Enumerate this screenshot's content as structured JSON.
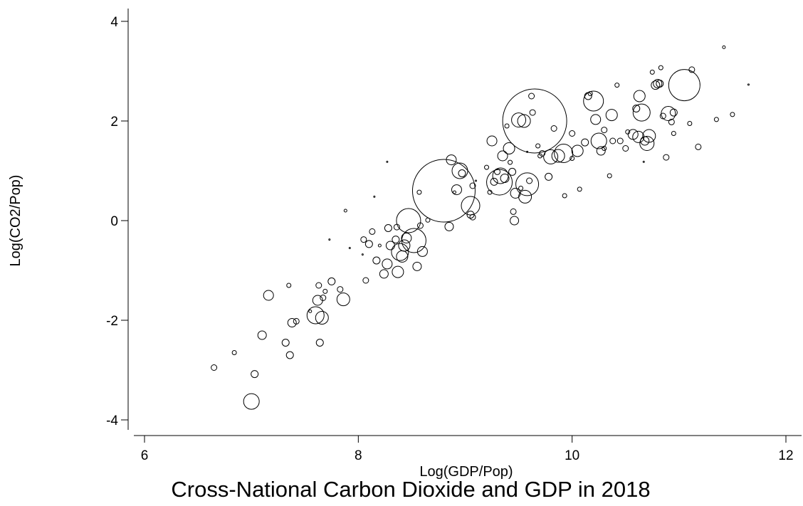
{
  "chart_data": {
    "type": "scatter",
    "title": "Cross-National Carbon Dioxide and GDP in 2018",
    "xlabel": "Log(GDP/Pop)",
    "ylabel": "Log(CO2/Pop)",
    "xlim": [
      6,
      12
    ],
    "ylim": [
      -4,
      4
    ],
    "xticks": [
      "6",
      "8",
      "10",
      "12"
    ],
    "yticks": [
      "4",
      "2",
      "0",
      "-2",
      "-4"
    ],
    "grid": false,
    "legend": "none",
    "points": [
      {
        "x": 6.65,
        "y": -2.95,
        "s": 4
      },
      {
        "x": 6.84,
        "y": -2.65,
        "s": 3
      },
      {
        "x": 7.0,
        "y": -3.63,
        "s": 11
      },
      {
        "x": 7.03,
        "y": -3.08,
        "s": 5
      },
      {
        "x": 7.1,
        "y": -2.3,
        "s": 6
      },
      {
        "x": 7.16,
        "y": -1.5,
        "s": 7
      },
      {
        "x": 7.32,
        "y": -2.45,
        "s": 5
      },
      {
        "x": 7.35,
        "y": -1.3,
        "s": 3
      },
      {
        "x": 7.36,
        "y": -2.7,
        "s": 5
      },
      {
        "x": 7.38,
        "y": -2.05,
        "s": 6
      },
      {
        "x": 7.42,
        "y": -2.02,
        "s": 4
      },
      {
        "x": 7.55,
        "y": -1.82,
        "s": 2
      },
      {
        "x": 7.6,
        "y": -1.9,
        "s": 12
      },
      {
        "x": 7.62,
        "y": -1.6,
        "s": 7
      },
      {
        "x": 7.63,
        "y": -1.3,
        "s": 4
      },
      {
        "x": 7.64,
        "y": -2.45,
        "s": 5
      },
      {
        "x": 7.66,
        "y": -1.95,
        "s": 9
      },
      {
        "x": 7.67,
        "y": -1.55,
        "s": 4
      },
      {
        "x": 7.69,
        "y": -1.42,
        "s": 3
      },
      {
        "x": 7.75,
        "y": -1.22,
        "s": 5
      },
      {
        "x": 7.83,
        "y": -1.38,
        "s": 4
      },
      {
        "x": 7.86,
        "y": -1.58,
        "s": 9
      },
      {
        "x": 7.88,
        "y": 0.2,
        "s": 2
      },
      {
        "x": 7.92,
        "y": -0.55,
        "s": 1
      },
      {
        "x": 8.04,
        "y": -0.68,
        "s": 1
      },
      {
        "x": 8.05,
        "y": -0.38,
        "s": 4
      },
      {
        "x": 8.07,
        "y": -1.2,
        "s": 4
      },
      {
        "x": 8.1,
        "y": -0.47,
        "s": 5
      },
      {
        "x": 8.13,
        "y": -0.22,
        "s": 4
      },
      {
        "x": 8.17,
        "y": -0.8,
        "s": 5
      },
      {
        "x": 8.2,
        "y": -0.5,
        "s": 2
      },
      {
        "x": 8.24,
        "y": -1.07,
        "s": 6
      },
      {
        "x": 8.27,
        "y": -0.87,
        "s": 7
      },
      {
        "x": 8.28,
        "y": -0.15,
        "s": 5
      },
      {
        "x": 8.3,
        "y": -0.5,
        "s": 6
      },
      {
        "x": 8.35,
        "y": -0.38,
        "s": 5
      },
      {
        "x": 8.36,
        "y": -0.13,
        "s": 4
      },
      {
        "x": 8.37,
        "y": -1.03,
        "s": 8
      },
      {
        "x": 8.39,
        "y": -0.63,
        "s": 12
      },
      {
        "x": 8.41,
        "y": -0.72,
        "s": 8
      },
      {
        "x": 8.43,
        "y": -0.5,
        "s": 8
      },
      {
        "x": 8.45,
        "y": -0.35,
        "s": 7
      },
      {
        "x": 8.47,
        "y": 0.0,
        "s": 17
      },
      {
        "x": 8.52,
        "y": -0.4,
        "s": 17
      },
      {
        "x": 8.55,
        "y": -0.92,
        "s": 6
      },
      {
        "x": 8.57,
        "y": 0.57,
        "s": 3
      },
      {
        "x": 8.58,
        "y": -0.1,
        "s": 4
      },
      {
        "x": 8.6,
        "y": -0.62,
        "s": 7
      },
      {
        "x": 8.65,
        "y": 0.01,
        "s": 3
      },
      {
        "x": 8.8,
        "y": 0.6,
        "s": 44
      },
      {
        "x": 8.85,
        "y": -0.12,
        "s": 6
      },
      {
        "x": 8.87,
        "y": 1.22,
        "s": 7
      },
      {
        "x": 8.9,
        "y": 0.57,
        "s": 2
      },
      {
        "x": 8.92,
        "y": 0.62,
        "s": 7
      },
      {
        "x": 8.95,
        "y": 1.0,
        "s": 11
      },
      {
        "x": 8.97,
        "y": 0.95,
        "s": 5
      },
      {
        "x": 9.05,
        "y": 0.3,
        "s": 13
      },
      {
        "x": 9.05,
        "y": 0.12,
        "s": 5
      },
      {
        "x": 9.07,
        "y": 0.07,
        "s": 4
      },
      {
        "x": 9.07,
        "y": 0.7,
        "s": 4
      },
      {
        "x": 9.2,
        "y": 1.07,
        "s": 3
      },
      {
        "x": 9.23,
        "y": 0.57,
        "s": 3
      },
      {
        "x": 9.25,
        "y": 1.6,
        "s": 7
      },
      {
        "x": 9.27,
        "y": 0.78,
        "s": 5
      },
      {
        "x": 9.3,
        "y": 0.98,
        "s": 4
      },
      {
        "x": 9.32,
        "y": 0.77,
        "s": 18
      },
      {
        "x": 9.33,
        "y": 0.9,
        "s": 11
      },
      {
        "x": 9.35,
        "y": 1.3,
        "s": 7
      },
      {
        "x": 9.37,
        "y": 0.85,
        "s": 6
      },
      {
        "x": 9.39,
        "y": 1.9,
        "s": 3
      },
      {
        "x": 9.41,
        "y": 1.45,
        "s": 8
      },
      {
        "x": 9.42,
        "y": 1.17,
        "s": 3
      },
      {
        "x": 9.44,
        "y": 0.98,
        "s": 5
      },
      {
        "x": 9.45,
        "y": 0.18,
        "s": 4
      },
      {
        "x": 9.46,
        "y": 0.0,
        "s": 6
      },
      {
        "x": 9.47,
        "y": 0.55,
        "s": 7
      },
      {
        "x": 9.5,
        "y": 2.02,
        "s": 10
      },
      {
        "x": 9.52,
        "y": 0.65,
        "s": 3
      },
      {
        "x": 9.55,
        "y": 2.0,
        "s": 9
      },
      {
        "x": 9.56,
        "y": 0.48,
        "s": 9
      },
      {
        "x": 9.58,
        "y": 0.73,
        "s": 16
      },
      {
        "x": 9.6,
        "y": 0.8,
        "s": 4
      },
      {
        "x": 9.62,
        "y": 2.5,
        "s": 4
      },
      {
        "x": 9.63,
        "y": 2.17,
        "s": 4
      },
      {
        "x": 9.65,
        "y": 2.0,
        "s": 45
      },
      {
        "x": 9.68,
        "y": 1.5,
        "s": 3
      },
      {
        "x": 9.7,
        "y": 1.3,
        "s": 3
      },
      {
        "x": 9.72,
        "y": 1.35,
        "s": 4
      },
      {
        "x": 9.78,
        "y": 0.88,
        "s": 5
      },
      {
        "x": 9.8,
        "y": 1.28,
        "s": 10
      },
      {
        "x": 9.83,
        "y": 1.85,
        "s": 4
      },
      {
        "x": 9.87,
        "y": 1.3,
        "s": 9
      },
      {
        "x": 9.92,
        "y": 1.35,
        "s": 13
      },
      {
        "x": 9.93,
        "y": 0.5,
        "s": 3
      },
      {
        "x": 10.0,
        "y": 1.75,
        "s": 4
      },
      {
        "x": 10.0,
        "y": 1.25,
        "s": 3
      },
      {
        "x": 10.05,
        "y": 1.4,
        "s": 8
      },
      {
        "x": 10.07,
        "y": 0.63,
        "s": 3
      },
      {
        "x": 10.12,
        "y": 1.57,
        "s": 5
      },
      {
        "x": 10.15,
        "y": 2.5,
        "s": 5
      },
      {
        "x": 10.17,
        "y": 2.55,
        "s": 3
      },
      {
        "x": 10.2,
        "y": 2.4,
        "s": 14
      },
      {
        "x": 10.22,
        "y": 2.03,
        "s": 7
      },
      {
        "x": 10.25,
        "y": 1.6,
        "s": 11
      },
      {
        "x": 10.27,
        "y": 1.4,
        "s": 6
      },
      {
        "x": 10.3,
        "y": 1.82,
        "s": 4
      },
      {
        "x": 10.3,
        "y": 1.45,
        "s": 3
      },
      {
        "x": 10.35,
        "y": 0.9,
        "s": 3
      },
      {
        "x": 10.37,
        "y": 2.12,
        "s": 8
      },
      {
        "x": 10.38,
        "y": 1.6,
        "s": 4
      },
      {
        "x": 10.42,
        "y": 2.72,
        "s": 3
      },
      {
        "x": 10.45,
        "y": 1.6,
        "s": 4
      },
      {
        "x": 10.5,
        "y": 1.45,
        "s": 4
      },
      {
        "x": 10.52,
        "y": 1.78,
        "s": 3
      },
      {
        "x": 10.57,
        "y": 1.73,
        "s": 7
      },
      {
        "x": 10.6,
        "y": 2.25,
        "s": 5
      },
      {
        "x": 10.62,
        "y": 1.68,
        "s": 8
      },
      {
        "x": 10.63,
        "y": 2.5,
        "s": 8
      },
      {
        "x": 10.65,
        "y": 2.17,
        "s": 12
      },
      {
        "x": 10.68,
        "y": 1.6,
        "s": 6
      },
      {
        "x": 10.7,
        "y": 1.55,
        "s": 10
      },
      {
        "x": 10.72,
        "y": 1.7,
        "s": 9
      },
      {
        "x": 10.75,
        "y": 2.98,
        "s": 3
      },
      {
        "x": 10.78,
        "y": 2.72,
        "s": 6
      },
      {
        "x": 10.8,
        "y": 2.75,
        "s": 6
      },
      {
        "x": 10.82,
        "y": 2.75,
        "s": 5
      },
      {
        "x": 10.83,
        "y": 3.07,
        "s": 3
      },
      {
        "x": 10.85,
        "y": 2.1,
        "s": 4
      },
      {
        "x": 10.88,
        "y": 1.27,
        "s": 4
      },
      {
        "x": 10.9,
        "y": 2.15,
        "s": 10
      },
      {
        "x": 10.93,
        "y": 1.98,
        "s": 4
      },
      {
        "x": 10.95,
        "y": 2.17,
        "s": 5
      },
      {
        "x": 10.95,
        "y": 1.75,
        "s": 3
      },
      {
        "x": 11.05,
        "y": 2.72,
        "s": 22
      },
      {
        "x": 11.1,
        "y": 1.95,
        "s": 3
      },
      {
        "x": 11.12,
        "y": 3.03,
        "s": 4
      },
      {
        "x": 11.18,
        "y": 1.48,
        "s": 4
      },
      {
        "x": 11.35,
        "y": 2.03,
        "s": 3
      },
      {
        "x": 11.42,
        "y": 3.48,
        "s": 2
      },
      {
        "x": 11.5,
        "y": 2.13,
        "s": 3
      },
      {
        "x": 11.65,
        "y": 2.73,
        "s": 1
      },
      {
        "x": 8.27,
        "y": 1.18,
        "s": 1
      },
      {
        "x": 8.15,
        "y": 0.48,
        "s": 1
      },
      {
        "x": 7.73,
        "y": -0.38,
        "s": 1
      },
      {
        "x": 9.1,
        "y": 0.8,
        "s": 1
      },
      {
        "x": 9.58,
        "y": 1.38,
        "s": 1
      },
      {
        "x": 10.67,
        "y": 1.18,
        "s": 1
      }
    ]
  }
}
